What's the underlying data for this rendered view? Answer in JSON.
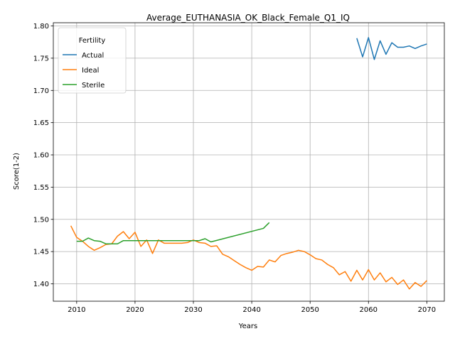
{
  "chart_data": {
    "type": "line",
    "title": "Average_EUTHANASIA_OK_Black_Female_Q1_IQ",
    "xlabel": "Years",
    "ylabel": "Score(1-2)",
    "xlim": [
      2006,
      2073
    ],
    "ylim": [
      1.373,
      1.805
    ],
    "xticks": [
      2010,
      2020,
      2030,
      2040,
      2050,
      2060,
      2070
    ],
    "yticks": [
      "1.40",
      "1.45",
      "1.50",
      "1.55",
      "1.60",
      "1.65",
      "1.70",
      "1.75",
      "1.80"
    ],
    "grid": true,
    "legend": {
      "title": "Fertility",
      "position": "top-left"
    },
    "series": [
      {
        "name": "Actual",
        "color": "#1f77b4",
        "x": [
          2058,
          2059,
          2060,
          2061,
          2062,
          2063,
          2064,
          2065,
          2066,
          2067,
          2068,
          2069,
          2070
        ],
        "y": [
          1.781,
          1.752,
          1.782,
          1.748,
          1.777,
          1.756,
          1.774,
          1.767,
          1.767,
          1.769,
          1.765,
          1.769,
          1.772
        ]
      },
      {
        "name": "Ideal",
        "color": "#ff7f0e",
        "x": [
          2009,
          2010,
          2011,
          2012,
          2013,
          2014,
          2015,
          2016,
          2017,
          2018,
          2019,
          2020,
          2021,
          2022,
          2023,
          2024,
          2025,
          2026,
          2027,
          2028,
          2029,
          2030,
          2031,
          2032,
          2033,
          2034,
          2035,
          2036,
          2037,
          2038,
          2039,
          2040,
          2041,
          2042,
          2043,
          2044,
          2045,
          2046,
          2047,
          2048,
          2049,
          2050,
          2051,
          2052,
          2053,
          2054,
          2055,
          2056,
          2057,
          2058,
          2059,
          2060,
          2061,
          2062,
          2063,
          2064,
          2065,
          2066,
          2067,
          2068,
          2069,
          2070
        ],
        "y": [
          1.49,
          1.472,
          1.466,
          1.458,
          1.452,
          1.456,
          1.461,
          1.462,
          1.474,
          1.481,
          1.47,
          1.48,
          1.458,
          1.468,
          1.447,
          1.468,
          1.463,
          1.463,
          1.463,
          1.463,
          1.464,
          1.468,
          1.464,
          1.463,
          1.458,
          1.459,
          1.446,
          1.442,
          1.436,
          1.43,
          1.425,
          1.421,
          1.427,
          1.426,
          1.437,
          1.434,
          1.444,
          1.447,
          1.449,
          1.452,
          1.45,
          1.445,
          1.439,
          1.437,
          1.43,
          1.425,
          1.414,
          1.419,
          1.404,
          1.421,
          1.406,
          1.422,
          1.406,
          1.417,
          1.403,
          1.41,
          1.399,
          1.406,
          1.392,
          1.402,
          1.396,
          1.405
        ]
      },
      {
        "name": "Sterile",
        "color": "#2ca02c",
        "x": [
          2010,
          2011,
          2012,
          2013,
          2014,
          2015,
          2016,
          2017,
          2018,
          2019,
          2020,
          2021,
          2022,
          2023,
          2024,
          2025,
          2026,
          2027,
          2028,
          2029,
          2030,
          2031,
          2032,
          2033,
          2042,
          2043
        ],
        "y": [
          1.466,
          1.466,
          1.471,
          1.467,
          1.466,
          1.462,
          1.462,
          1.462,
          1.467,
          1.467,
          1.467,
          1.467,
          1.467,
          1.467,
          1.467,
          1.467,
          1.467,
          1.467,
          1.467,
          1.467,
          1.467,
          1.467,
          1.47,
          1.465,
          1.486,
          1.495
        ]
      }
    ]
  }
}
